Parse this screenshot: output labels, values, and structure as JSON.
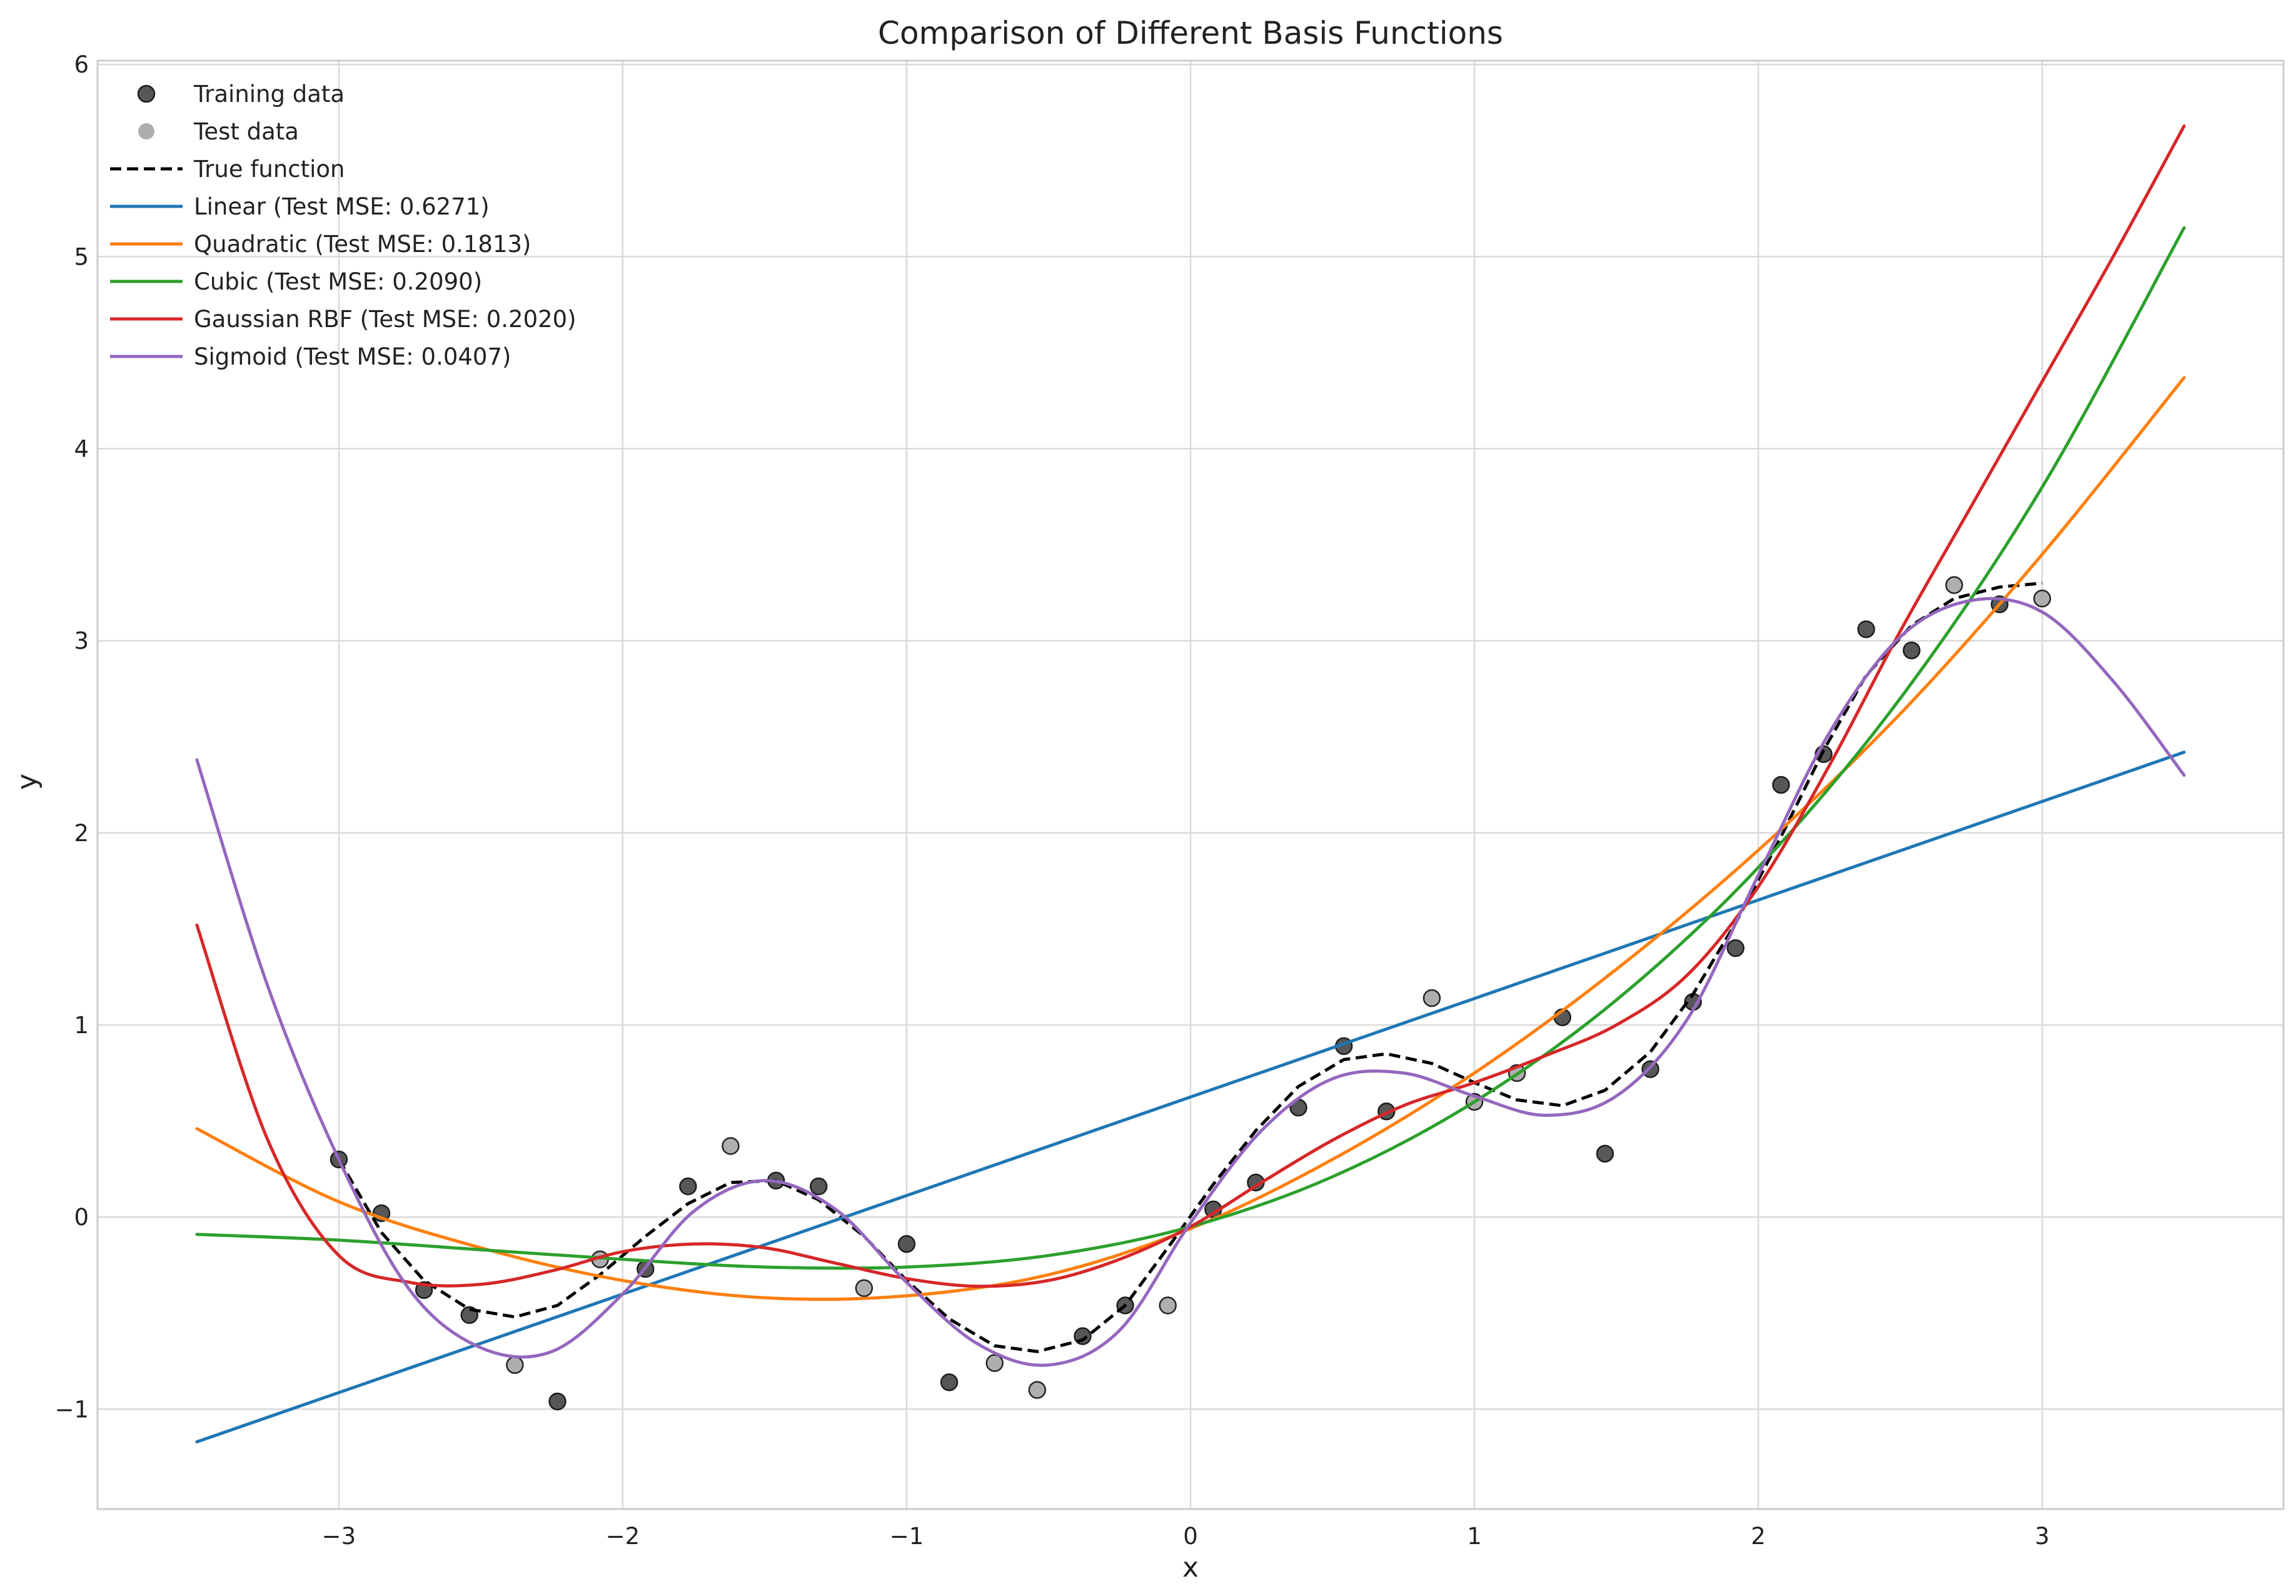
{
  "chart_data": {
    "type": "scatter+line",
    "title": "Comparison of Different Basis Functions",
    "xlabel": "x",
    "ylabel": "y",
    "xlim": [
      -3.85,
      3.85
    ],
    "ylim": [
      -1.52,
      6.02
    ],
    "xticks": [
      -3,
      -2,
      -1,
      0,
      1,
      2,
      3
    ],
    "xtick_labels": [
      "−3",
      "−2",
      "−1",
      "0",
      "1",
      "2",
      "3"
    ],
    "yticks": [
      -1,
      0,
      1,
      2,
      3,
      4,
      5,
      6
    ],
    "ytick_labels": [
      "−1",
      "0",
      "1",
      "2",
      "3",
      "4",
      "5",
      "6"
    ],
    "grid": true,
    "legend_position": "top-left",
    "training_data": {
      "name": "Training data",
      "color": "#3a3a3a",
      "points": [
        [
          -3.0,
          0.3
        ],
        [
          -2.85,
          0.02
        ],
        [
          -2.7,
          -0.38
        ],
        [
          -2.54,
          -0.51
        ],
        [
          -2.23,
          -0.96
        ],
        [
          -1.92,
          -0.27
        ],
        [
          -1.77,
          0.16
        ],
        [
          -1.46,
          0.19
        ],
        [
          -1.31,
          0.16
        ],
        [
          -1.0,
          -0.14
        ],
        [
          -0.85,
          -0.86
        ],
        [
          -0.38,
          -0.62
        ],
        [
          -0.23,
          -0.46
        ],
        [
          0.08,
          0.04
        ],
        [
          0.23,
          0.18
        ],
        [
          0.38,
          0.57
        ],
        [
          0.54,
          0.89
        ],
        [
          0.69,
          0.55
        ],
        [
          1.31,
          1.04
        ],
        [
          1.46,
          0.33
        ],
        [
          1.62,
          0.77
        ],
        [
          1.77,
          1.12
        ],
        [
          1.92,
          1.4
        ],
        [
          2.08,
          2.25
        ],
        [
          2.23,
          2.41
        ],
        [
          2.38,
          3.06
        ],
        [
          2.54,
          2.95
        ],
        [
          2.85,
          3.19
        ]
      ]
    },
    "test_data": {
      "name": "Test data",
      "color": "#a0a0a0",
      "points": [
        [
          -2.38,
          -0.77
        ],
        [
          -2.08,
          -0.22
        ],
        [
          -1.62,
          0.37
        ],
        [
          -1.15,
          -0.37
        ],
        [
          -0.69,
          -0.76
        ],
        [
          -0.54,
          -0.9
        ],
        [
          -0.08,
          -0.46
        ],
        [
          0.85,
          1.14
        ],
        [
          1.0,
          0.6
        ],
        [
          1.15,
          0.75
        ],
        [
          2.69,
          3.29
        ],
        [
          3.0,
          3.22
        ]
      ]
    },
    "true_function": {
      "name": "True function",
      "color": "#000000",
      "x": [
        -3.0,
        -2.85,
        -2.7,
        -2.54,
        -2.38,
        -2.23,
        -2.08,
        -1.92,
        -1.77,
        -1.62,
        -1.46,
        -1.31,
        -1.15,
        -1.0,
        -0.85,
        -0.69,
        -0.54,
        -0.38,
        -0.23,
        -0.08,
        0.08,
        0.23,
        0.38,
        0.54,
        0.69,
        0.85,
        1.0,
        1.15,
        1.31,
        1.46,
        1.62,
        1.77,
        1.92,
        2.08,
        2.23,
        2.38,
        2.54,
        2.69,
        2.85,
        3.0
      ],
      "y": [
        0.3,
        -0.08,
        -0.33,
        -0.48,
        -0.52,
        -0.46,
        -0.3,
        -0.1,
        0.07,
        0.18,
        0.19,
        0.09,
        -0.1,
        -0.33,
        -0.53,
        -0.67,
        -0.7,
        -0.64,
        -0.46,
        -0.16,
        0.17,
        0.45,
        0.68,
        0.82,
        0.85,
        0.8,
        0.7,
        0.61,
        0.58,
        0.66,
        0.86,
        1.16,
        1.53,
        1.98,
        2.43,
        2.82,
        3.08,
        3.22,
        3.28,
        3.3
      ]
    },
    "series": [
      {
        "name": "Linear (Test MSE: 0.6271)",
        "color": "#1f77b4",
        "x": [
          -3.5,
          3.5
        ],
        "y": [
          -1.17,
          2.42
        ]
      },
      {
        "name": "Quadratic (Test MSE: 0.1813)",
        "color": "#ff7f0e",
        "x": [
          -3.5,
          -3.0,
          -2.5,
          -2.0,
          -1.5,
          -1.0,
          -0.5,
          0.0,
          0.5,
          1.0,
          1.5,
          2.0,
          2.5,
          3.0,
          3.5
        ],
        "y": [
          0.46,
          0.08,
          -0.16,
          -0.33,
          -0.42,
          -0.41,
          -0.3,
          -0.06,
          0.3,
          0.75,
          1.29,
          1.91,
          2.62,
          3.45,
          4.37
        ]
      },
      {
        "name": "Cubic (Test MSE: 0.2090)",
        "color": "#2ca02c",
        "x": [
          -3.5,
          -3.0,
          -2.5,
          -2.0,
          -1.5,
          -1.0,
          -0.5,
          0.0,
          0.5,
          1.0,
          1.5,
          2.0,
          2.5,
          3.0,
          3.5
        ],
        "y": [
          -0.09,
          -0.12,
          -0.17,
          -0.22,
          -0.26,
          -0.26,
          -0.2,
          -0.05,
          0.21,
          0.6,
          1.13,
          1.82,
          2.7,
          3.8,
          5.15
        ]
      },
      {
        "name": "Gaussian RBF (Test MSE: 0.2020)",
        "color": "#d62728",
        "x": [
          -3.5,
          -3.25,
          -3.0,
          -2.75,
          -2.5,
          -2.25,
          -2.0,
          -1.75,
          -1.5,
          -1.25,
          -1.0,
          -0.75,
          -0.5,
          -0.25,
          0.0,
          0.25,
          0.5,
          0.75,
          1.0,
          1.25,
          1.5,
          1.75,
          2.0,
          2.25,
          2.5,
          2.75,
          3.0,
          3.25,
          3.5
        ],
        "y": [
          1.52,
          0.4,
          -0.2,
          -0.34,
          -0.35,
          -0.28,
          -0.18,
          -0.14,
          -0.16,
          -0.24,
          -0.32,
          -0.36,
          -0.33,
          -0.22,
          -0.05,
          0.18,
          0.4,
          0.58,
          0.7,
          0.84,
          1.0,
          1.26,
          1.72,
          2.35,
          3.05,
          3.7,
          4.35,
          5.0,
          5.68
        ]
      },
      {
        "name": "Sigmoid (Test MSE: 0.0407)",
        "color": "#9467bd",
        "x": [
          -3.5,
          -3.25,
          -3.0,
          -2.75,
          -2.5,
          -2.25,
          -2.0,
          -1.75,
          -1.5,
          -1.25,
          -1.0,
          -0.75,
          -0.5,
          -0.25,
          0.0,
          0.25,
          0.5,
          0.75,
          1.0,
          1.25,
          1.5,
          1.75,
          2.0,
          2.25,
          2.5,
          2.75,
          3.0,
          3.25,
          3.5
        ],
        "y": [
          2.38,
          1.2,
          0.3,
          -0.38,
          -0.68,
          -0.7,
          -0.4,
          0.03,
          0.19,
          0.04,
          -0.34,
          -0.66,
          -0.77,
          -0.59,
          -0.03,
          0.45,
          0.72,
          0.75,
          0.63,
          0.53,
          0.63,
          1.03,
          1.78,
          2.52,
          3.02,
          3.21,
          3.15,
          2.79,
          2.3
        ]
      }
    ]
  }
}
